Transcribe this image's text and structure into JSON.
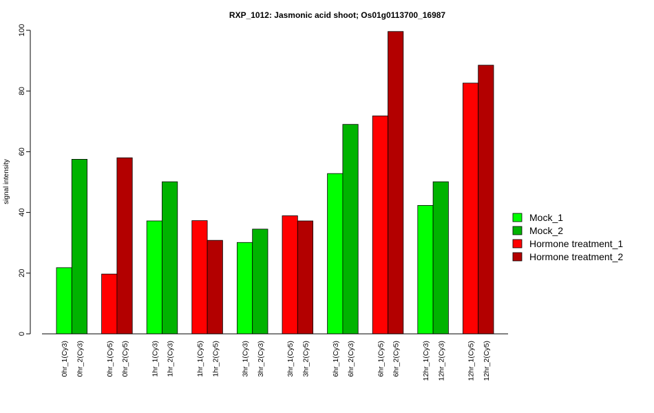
{
  "chart_data": {
    "type": "bar",
    "title": "RXP_1012: Jasmonic acid shoot; Os01g0113700_16987",
    "xlabel": "",
    "ylabel": "signal intensity",
    "ylim": [
      0,
      100
    ],
    "yticks": [
      0,
      20,
      40,
      60,
      80,
      100
    ],
    "legend_position": "right",
    "legend": [
      {
        "name": "Mock_1",
        "color": "#00ff00"
      },
      {
        "name": "Mock_2",
        "color": "#00b300"
      },
      {
        "name": "Hormone treatment_1",
        "color": "#ff0000"
      },
      {
        "name": "Hormone treatment_2",
        "color": "#b30000"
      }
    ],
    "groups": [
      {
        "bars": [
          {
            "label": "0hr_1(Cy3)",
            "value": 21.8,
            "series": 0
          },
          {
            "label": "0hr_2(Cy3)",
            "value": 57.5,
            "series": 1
          }
        ]
      },
      {
        "bars": [
          {
            "label": "0hr_1(Cy5)",
            "value": 19.7,
            "series": 2
          },
          {
            "label": "0hr_2(Cy5)",
            "value": 58.0,
            "series": 3
          }
        ]
      },
      {
        "bars": [
          {
            "label": "1hr_1(Cy3)",
            "value": 37.2,
            "series": 0
          },
          {
            "label": "1hr_2(Cy3)",
            "value": 50.1,
            "series": 1
          }
        ]
      },
      {
        "bars": [
          {
            "label": "1hr_1(Cy5)",
            "value": 37.3,
            "series": 2
          },
          {
            "label": "1hr_2(Cy5)",
            "value": 30.8,
            "series": 3
          }
        ]
      },
      {
        "bars": [
          {
            "label": "3hr_1(Cy3)",
            "value": 30.1,
            "series": 0
          },
          {
            "label": "3hr_2(Cy3)",
            "value": 34.5,
            "series": 1
          }
        ]
      },
      {
        "bars": [
          {
            "label": "3hr_1(Cy5)",
            "value": 38.9,
            "series": 2
          },
          {
            "label": "3hr_2(Cy5)",
            "value": 37.2,
            "series": 3
          }
        ]
      },
      {
        "bars": [
          {
            "label": "6hr_1(Cy3)",
            "value": 52.8,
            "series": 0
          },
          {
            "label": "6hr_2(Cy3)",
            "value": 69.0,
            "series": 1
          }
        ]
      },
      {
        "bars": [
          {
            "label": "6hr_1(Cy5)",
            "value": 71.8,
            "series": 2
          },
          {
            "label": "6hr_2(Cy5)",
            "value": 99.6,
            "series": 3
          }
        ]
      },
      {
        "bars": [
          {
            "label": "12hr_1(Cy3)",
            "value": 42.3,
            "series": 0
          },
          {
            "label": "12hr_2(Cy3)",
            "value": 50.1,
            "series": 1
          }
        ]
      },
      {
        "bars": [
          {
            "label": "12hr_1(Cy5)",
            "value": 82.6,
            "series": 2
          },
          {
            "label": "12hr_2(Cy5)",
            "value": 88.5,
            "series": 3
          }
        ]
      }
    ]
  }
}
